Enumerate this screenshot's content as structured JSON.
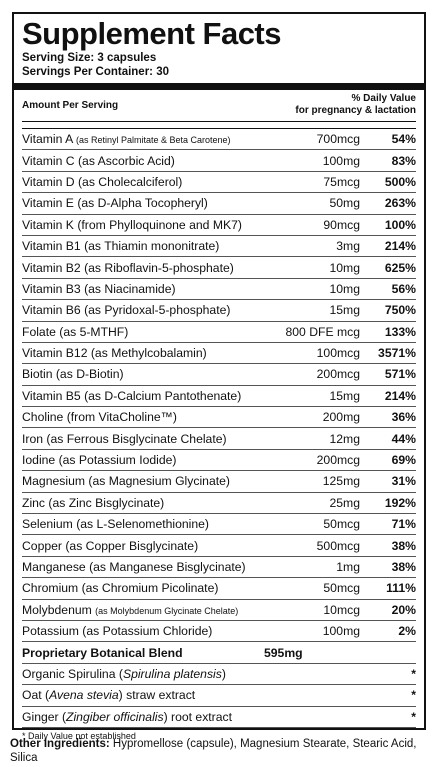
{
  "title": "Supplement Facts",
  "serving_size": "Serving Size: 3 capsules",
  "servings_per_container": "Servings Per Container: 30",
  "header": {
    "amount_per_serving": "Amount Per Serving",
    "daily_value_line1": "% Daily Value",
    "daily_value_line2": "for pregnancy & lactation"
  },
  "nutrients": [
    {
      "name": "Vitamin A",
      "source": "(as Retinyl Palmitate & Beta Carotene)",
      "small": true,
      "amount": "700mcg",
      "dv": "54%"
    },
    {
      "name": "Vitamin C (as Ascorbic Acid)",
      "amount": "100mg",
      "dv": "83%"
    },
    {
      "name": "Vitamin D (as Cholecalciferol)",
      "amount": "75mcg",
      "dv": "500%"
    },
    {
      "name": "Vitamin E (as D-Alpha Tocopheryl)",
      "amount": "50mg",
      "dv": "263%"
    },
    {
      "name": "Vitamin K (from Phylloquinone and MK7)",
      "amount": "90mcg",
      "dv": "100%"
    },
    {
      "name": "Vitamin B1 (as Thiamin mononitrate)",
      "amount": "3mg",
      "dv": "214%"
    },
    {
      "name": "Vitamin B2 (as Riboflavin-5-phosphate)",
      "amount": "10mg",
      "dv": "625%"
    },
    {
      "name": "Vitamin B3 (as Niacinamide)",
      "amount": "10mg",
      "dv": "56%"
    },
    {
      "name": "Vitamin B6 (as Pyridoxal-5-phosphate)",
      "amount": "15mg",
      "dv": "750%"
    },
    {
      "name": "Folate (as 5-MTHF)",
      "amount": "800 DFE mcg",
      "dv": "133%"
    },
    {
      "name": "Vitamin B12 (as Methylcobalamin)",
      "amount": "100mcg",
      "dv": "3571%"
    },
    {
      "name": "Biotin (as D-Biotin)",
      "amount": "200mcg",
      "dv": "571%"
    },
    {
      "name": "Vitamin B5 (as D-Calcium Pantothenate)",
      "amount": "15mg",
      "dv": "214%"
    },
    {
      "name": "Choline (from VitaCholine™)",
      "amount": "200mg",
      "dv": "36%"
    },
    {
      "name": "Iron (as Ferrous Bisglycinate Chelate)",
      "amount": "12mg",
      "dv": "44%"
    },
    {
      "name": "Iodine (as Potassium Iodide)",
      "amount": "200mcg",
      "dv": "69%"
    },
    {
      "name": "Magnesium (as Magnesium Glycinate)",
      "amount": "125mg",
      "dv": "31%"
    },
    {
      "name": "Zinc (as Zinc Bisglycinate)",
      "amount": "25mg",
      "dv": "192%"
    },
    {
      "name": "Selenium (as L-Selenomethionine)",
      "amount": "50mcg",
      "dv": "71%"
    },
    {
      "name": "Copper (as Copper Bisglycinate)",
      "amount": "500mcg",
      "dv": "38%"
    },
    {
      "name": "Manganese (as Manganese Bisglycinate)",
      "amount": "1mg",
      "dv": "38%"
    },
    {
      "name": "Chromium (as Chromium Picolinate)",
      "amount": "50mcg",
      "dv": "111%"
    },
    {
      "name": "Molybdenum",
      "source": "(as Molybdenum Glycinate Chelate)",
      "small": true,
      "amount": "10mcg",
      "dv": "20%"
    },
    {
      "name": "Potassium (as Potassium Chloride)",
      "amount": "100mg",
      "dv": "2%"
    }
  ],
  "blend": {
    "name": "Proprietary Botanical Blend",
    "amount": "595mg"
  },
  "blend_items": [
    {
      "pre": "Organic Spirulina (",
      "italic": "Spirulina platensis",
      "post": ")",
      "dv": "*"
    },
    {
      "pre": "Oat (",
      "italic": "Avena stevia",
      "post": ") straw extract",
      "dv": "*"
    },
    {
      "pre": "Ginger (",
      "italic": "Zingiber officinalis",
      "post": ") root extract",
      "dv": "*"
    }
  ],
  "footnote": "* Daily Value not established",
  "other_ingredients": {
    "label": "Other Ingredients:",
    "text": " Hypromellose (capsule), Magnesium Stearate, Stearic Acid, Silica"
  }
}
